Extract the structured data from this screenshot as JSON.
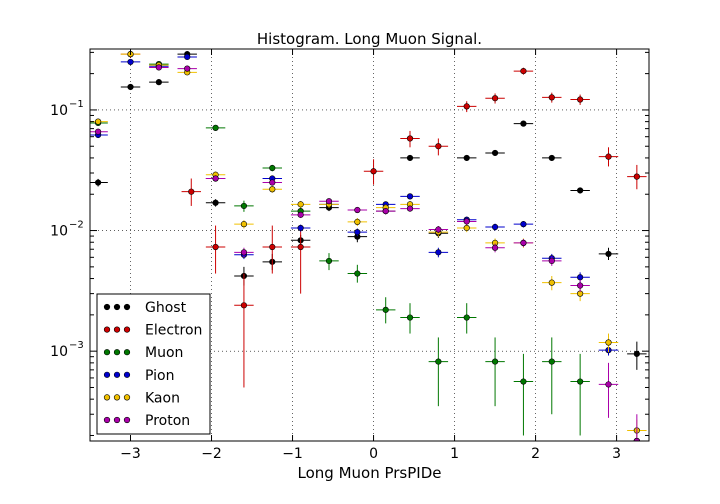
{
  "chart_data": {
    "type": "scatter",
    "title": "Histogram. Long Muon Signal.",
    "xlabel": "Long Muon PrsPIDe",
    "ylabel": "",
    "xlim": [
      -3.5,
      3.4
    ],
    "ylim": [
      0.00018,
      0.32
    ],
    "yscale": "log",
    "grid": true,
    "legend_position": "lower-left",
    "x_ticks": [
      {
        "v": -3,
        "label": "−3"
      },
      {
        "v": -2,
        "label": "−2"
      },
      {
        "v": -1,
        "label": "−1"
      },
      {
        "v": 0,
        "label": "0"
      },
      {
        "v": 1,
        "label": "1"
      },
      {
        "v": 2,
        "label": "2"
      },
      {
        "v": 3,
        "label": "3"
      }
    ],
    "y_ticks": [
      {
        "v": 0.001,
        "base": "10",
        "exp": "−3"
      },
      {
        "v": 0.01,
        "base": "10",
        "exp": "−2"
      },
      {
        "v": 0.1,
        "base": "10",
        "exp": "−1"
      }
    ],
    "bin_half_width": 0.12,
    "series": [
      {
        "name": "Ghost",
        "color": "#000000",
        "points": [
          [
            -3.4,
            0.025,
            0.0232,
            0.0268
          ],
          [
            -3.0,
            0.155,
            0.15,
            0.16
          ],
          [
            -2.65,
            0.17,
            0.165,
            0.175
          ],
          [
            -2.3,
            0.29,
            0.283,
            0.297
          ],
          [
            -1.95,
            0.017,
            0.0158,
            0.0182
          ],
          [
            -1.6,
            0.0042,
            0.0035,
            0.005
          ],
          [
            -1.25,
            0.0055,
            0.0047,
            0.0064
          ],
          [
            -0.9,
            0.0083,
            0.0074,
            0.0092
          ],
          [
            -0.55,
            0.0155,
            0.0145,
            0.0165
          ],
          [
            -0.2,
            0.0089,
            0.008,
            0.0098
          ],
          [
            0.15,
            0.0145,
            0.0136,
            0.0155
          ],
          [
            0.45,
            0.04,
            0.038,
            0.042
          ],
          [
            0.8,
            0.0095,
            0.0087,
            0.0103
          ],
          [
            1.15,
            0.04,
            0.038,
            0.042
          ],
          [
            1.5,
            0.044,
            0.042,
            0.046
          ],
          [
            1.85,
            0.077,
            0.074,
            0.08
          ],
          [
            2.2,
            0.04,
            0.038,
            0.042
          ],
          [
            2.55,
            0.0215,
            0.0203,
            0.0227
          ],
          [
            2.9,
            0.0064,
            0.0057,
            0.0072
          ],
          [
            3.25,
            0.00095,
            0.0007,
            0.0012
          ]
        ]
      },
      {
        "name": "Electron",
        "color": "#cc0000",
        "points": [
          [
            -3.0,
            0.29,
            0.27,
            0.31
          ],
          [
            -2.25,
            0.021,
            0.016,
            0.027
          ],
          [
            -1.95,
            0.0073,
            0.0044,
            0.011
          ],
          [
            -1.6,
            0.0024,
            0.0005,
            0.0044
          ],
          [
            -1.25,
            0.0073,
            0.0044,
            0.011
          ],
          [
            -0.9,
            0.0073,
            0.003,
            0.011
          ],
          [
            0.0,
            0.031,
            0.024,
            0.039
          ],
          [
            0.45,
            0.058,
            0.049,
            0.067
          ],
          [
            0.8,
            0.05,
            0.042,
            0.058
          ],
          [
            1.15,
            0.107,
            0.096,
            0.118
          ],
          [
            1.5,
            0.125,
            0.113,
            0.137
          ],
          [
            1.85,
            0.21,
            0.196,
            0.224
          ],
          [
            2.2,
            0.127,
            0.115,
            0.139
          ],
          [
            2.55,
            0.122,
            0.11,
            0.134
          ],
          [
            2.9,
            0.041,
            0.034,
            0.049
          ],
          [
            3.25,
            0.028,
            0.022,
            0.035
          ]
        ]
      },
      {
        "name": "Muon",
        "color": "#007700",
        "points": [
          [
            -3.4,
            0.078,
            0.074,
            0.082
          ],
          [
            -2.65,
            0.24,
            0.235,
            0.245
          ],
          [
            -1.95,
            0.071,
            0.068,
            0.074
          ],
          [
            -1.6,
            0.016,
            0.0143,
            0.0177
          ],
          [
            -1.25,
            0.033,
            0.031,
            0.035
          ],
          [
            -0.9,
            0.0145,
            0.0132,
            0.0158
          ],
          [
            -0.55,
            0.0056,
            0.0047,
            0.0065
          ],
          [
            -0.2,
            0.0044,
            0.0037,
            0.0052
          ],
          [
            0.15,
            0.0022,
            0.0017,
            0.0028
          ],
          [
            0.45,
            0.0019,
            0.0014,
            0.0025
          ],
          [
            0.8,
            0.00082,
            0.00035,
            0.0013
          ],
          [
            1.15,
            0.0019,
            0.0014,
            0.0025
          ],
          [
            1.5,
            0.00082,
            0.00035,
            0.0013
          ],
          [
            1.85,
            0.00056,
            0.0002,
            0.00095
          ],
          [
            2.2,
            0.00082,
            0.0003,
            0.0013
          ],
          [
            2.55,
            0.00056,
            0.0002,
            0.00095
          ]
        ]
      },
      {
        "name": "Pion",
        "color": "#0000cc",
        "points": [
          [
            -3.4,
            0.062,
            0.059,
            0.065
          ],
          [
            -3.0,
            0.25,
            0.245,
            0.255
          ],
          [
            -2.65,
            0.23,
            0.225,
            0.235
          ],
          [
            -2.3,
            0.275,
            0.27,
            0.28
          ],
          [
            -1.95,
            0.027,
            0.0258,
            0.0282
          ],
          [
            -1.6,
            0.0063,
            0.0058,
            0.0068
          ],
          [
            -1.25,
            0.027,
            0.0258,
            0.0282
          ],
          [
            -0.9,
            0.0105,
            0.0098,
            0.0112
          ],
          [
            -0.55,
            0.0165,
            0.0157,
            0.0173
          ],
          [
            -0.2,
            0.0097,
            0.009,
            0.0104
          ],
          [
            0.15,
            0.0165,
            0.0157,
            0.0173
          ],
          [
            0.45,
            0.0192,
            0.0183,
            0.0201
          ],
          [
            0.8,
            0.0066,
            0.006,
            0.0072
          ],
          [
            1.15,
            0.0123,
            0.0116,
            0.013
          ],
          [
            1.5,
            0.0107,
            0.01,
            0.0114
          ],
          [
            1.85,
            0.0113,
            0.0106,
            0.012
          ],
          [
            2.2,
            0.0059,
            0.0054,
            0.0064
          ],
          [
            2.55,
            0.0041,
            0.0037,
            0.0045
          ],
          [
            2.9,
            0.00102,
            0.00092,
            0.00112
          ],
          [
            3.25,
            0.00018,
            0.00015,
            0.00021
          ]
        ]
      },
      {
        "name": "Kaon",
        "color": "#f0c000",
        "points": [
          [
            -3.4,
            0.08,
            0.076,
            0.084
          ],
          [
            -3.0,
            0.29,
            0.283,
            0.297
          ],
          [
            -2.65,
            0.235,
            0.229,
            0.241
          ],
          [
            -2.3,
            0.205,
            0.2,
            0.21
          ],
          [
            -1.95,
            0.029,
            0.0272,
            0.0308
          ],
          [
            -1.6,
            0.0113,
            0.0104,
            0.0122
          ],
          [
            -1.25,
            0.022,
            0.0206,
            0.0234
          ],
          [
            -0.9,
            0.0165,
            0.0154,
            0.0176
          ],
          [
            -0.55,
            0.0165,
            0.0154,
            0.0176
          ],
          [
            -0.2,
            0.0118,
            0.0109,
            0.0127
          ],
          [
            0.15,
            0.0155,
            0.0145,
            0.0165
          ],
          [
            0.45,
            0.0165,
            0.0154,
            0.0176
          ],
          [
            0.8,
            0.0097,
            0.0089,
            0.0105
          ],
          [
            1.15,
            0.0105,
            0.0097,
            0.0113
          ],
          [
            1.5,
            0.0079,
            0.0072,
            0.0086
          ],
          [
            1.85,
            0.0079,
            0.0072,
            0.0086
          ],
          [
            2.2,
            0.0037,
            0.0032,
            0.0042
          ],
          [
            2.55,
            0.003,
            0.0026,
            0.0034
          ],
          [
            2.9,
            0.00118,
            0.00098,
            0.0014
          ],
          [
            3.25,
            0.00022,
            0.00017,
            0.00027
          ]
        ]
      },
      {
        "name": "Proton",
        "color": "#aa00aa",
        "points": [
          [
            -3.4,
            0.066,
            0.063,
            0.069
          ],
          [
            -2.65,
            0.225,
            0.22,
            0.23
          ],
          [
            -2.3,
            0.22,
            0.215,
            0.225
          ],
          [
            -1.95,
            0.027,
            0.0256,
            0.0284
          ],
          [
            -1.6,
            0.0066,
            0.006,
            0.0072
          ],
          [
            -1.25,
            0.025,
            0.0237,
            0.0263
          ],
          [
            -0.9,
            0.0135,
            0.0127,
            0.0143
          ],
          [
            -0.55,
            0.0175,
            0.0166,
            0.0184
          ],
          [
            -0.2,
            0.0148,
            0.014,
            0.0156
          ],
          [
            0.15,
            0.0145,
            0.0137,
            0.0153
          ],
          [
            0.45,
            0.0152,
            0.0144,
            0.016
          ],
          [
            0.8,
            0.0102,
            0.0095,
            0.0109
          ],
          [
            1.15,
            0.0119,
            0.0111,
            0.0127
          ],
          [
            1.5,
            0.0072,
            0.0066,
            0.0078
          ],
          [
            1.85,
            0.0079,
            0.0073,
            0.0085
          ],
          [
            2.2,
            0.0056,
            0.0051,
            0.0061
          ],
          [
            2.55,
            0.0035,
            0.0031,
            0.0039
          ],
          [
            2.9,
            0.00053,
            0.00028,
            0.0008
          ],
          [
            3.25,
            0.00018,
            0.00016,
            0.0003
          ]
        ]
      }
    ]
  }
}
